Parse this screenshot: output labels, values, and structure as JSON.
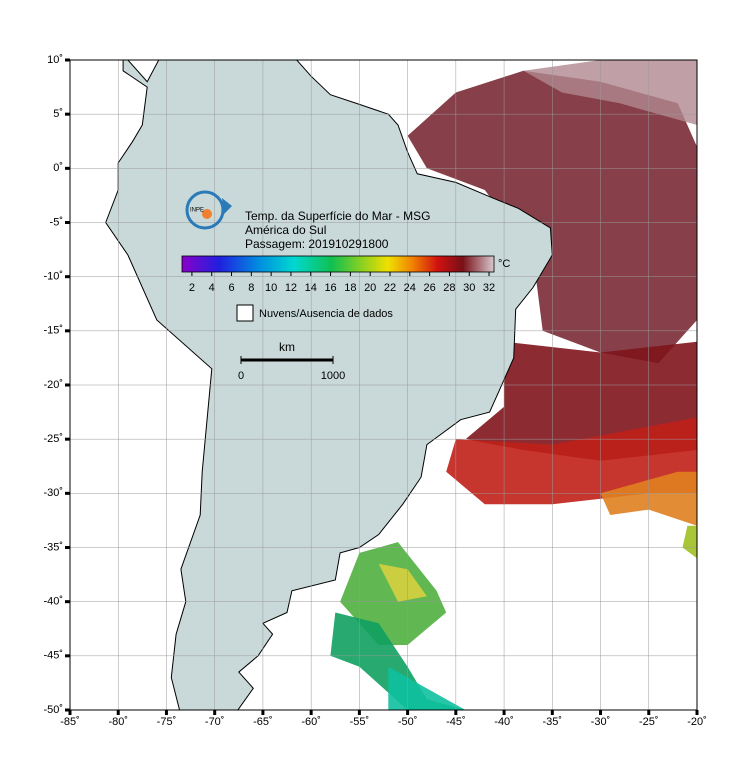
{
  "map": {
    "title_lines": [
      "Temp. da Superfície do Mar - MSG",
      "América do Sul",
      "Passagem: 201910291800"
    ],
    "colorbar": {
      "unit": "°C",
      "clim": [
        1,
        32.5
      ],
      "ticks": [
        2,
        4,
        6,
        8,
        10,
        12,
        14,
        16,
        18,
        20,
        22,
        24,
        26,
        28,
        30,
        32
      ]
    },
    "legend": {
      "no_data": "Nuvens/Ausencia de dados"
    },
    "scale_bar": {
      "unit": "km",
      "ticks": [
        0,
        1000
      ]
    },
    "xlim": [
      -85,
      -20
    ],
    "ylim": [
      -50,
      10
    ],
    "xticks": [
      {
        "value": -85,
        "label": "-85˚"
      },
      {
        "value": -80,
        "label": "-80˚"
      },
      {
        "value": -75,
        "label": "-75˚"
      },
      {
        "value": -70,
        "label": "-70˚"
      },
      {
        "value": -65,
        "label": "-65˚"
      },
      {
        "value": -60,
        "label": "-60˚"
      },
      {
        "value": -55,
        "label": "-55˚"
      },
      {
        "value": -50,
        "label": "-50˚"
      },
      {
        "value": -45,
        "label": "-45˚"
      },
      {
        "value": -40,
        "label": "-40˚"
      },
      {
        "value": -35,
        "label": "-35˚"
      },
      {
        "value": -30,
        "label": "-30˚"
      },
      {
        "value": -25,
        "label": "-25˚"
      },
      {
        "value": -20,
        "label": "-20˚"
      }
    ],
    "yticks": [
      {
        "value": 10,
        "label": "10˚"
      },
      {
        "value": 5,
        "label": "5˚"
      },
      {
        "value": 0,
        "label": "0˚"
      },
      {
        "value": -5,
        "label": "-5˚"
      },
      {
        "value": -10,
        "label": "-10˚"
      },
      {
        "value": -15,
        "label": "-15˚"
      },
      {
        "value": -20,
        "label": "-20˚"
      },
      {
        "value": -25,
        "label": "-25˚"
      },
      {
        "value": -30,
        "label": "-30˚"
      },
      {
        "value": -35,
        "label": "-35˚"
      },
      {
        "value": -40,
        "label": "-40˚"
      },
      {
        "value": -45,
        "label": "-45˚"
      },
      {
        "value": -50,
        "label": "-50˚"
      }
    ]
  }
}
